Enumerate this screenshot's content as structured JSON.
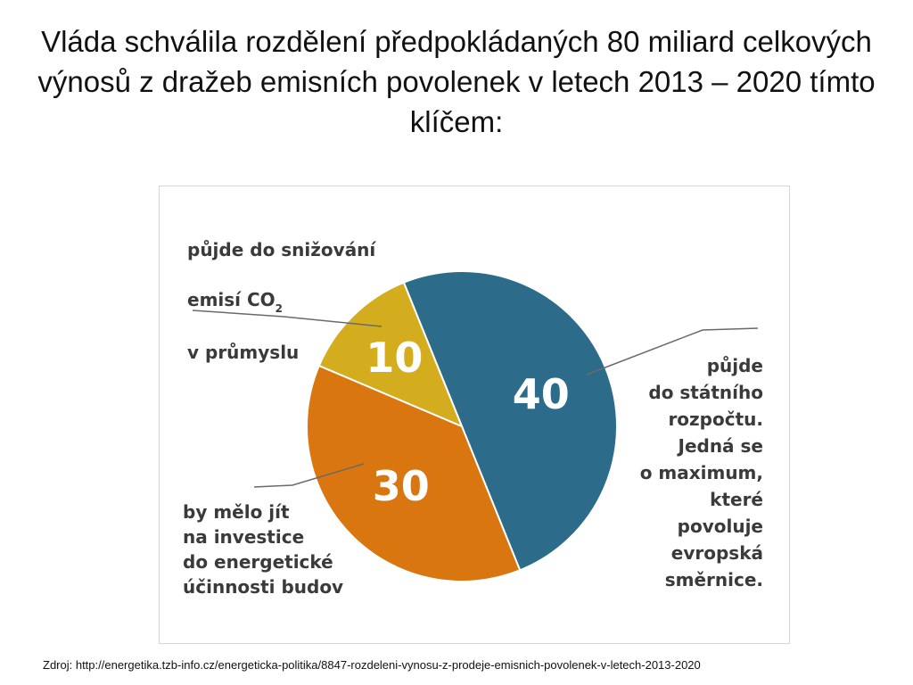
{
  "title": "Vláda schválila rozdělení předpokládaných 80 miliard celkových výnosů z dražeb emisních povolenek v letech 2013 – 2020 tímto klíčem:",
  "chart_data": {
    "type": "pie",
    "title": "Vláda schválila rozdělení předpokládaných 80 miliard celkových výnosů z dražeb emisních povolenek v letech 2013 – 2020 tímto klíčem:",
    "total": 80,
    "slices": [
      {
        "label": "půjde do státního rozpočtu. Jedná se o maximum, které povoluje evropská směrnice.",
        "value": 40,
        "value_label": "40",
        "color": "#2d6b8a"
      },
      {
        "label": "by mělo jít na investice do energetické účinnosti budov",
        "value": 30,
        "value_label": "30",
        "color": "#d9760f"
      },
      {
        "label": "půjde do snižování emisí CO2 v průmyslu",
        "value": 10,
        "value_label": "10",
        "color": "#d4ad1f"
      }
    ],
    "legend": "none"
  },
  "callouts": {
    "top_line1": "půjde do snižování",
    "top_line2_prefix": "emisí CO",
    "top_line2_sub": "2",
    "top_line3": "v průmyslu",
    "right": "půjde\ndo státního\nrozpočtu.\nJedná se\no maximum,\nkteré\npovoluje\nevropská\nsměrnice.",
    "bottom": "by mělo jít\nna investice\ndo energetické\núčinnosti budov"
  },
  "source": "Zdroj: http://energetika.tzb-info.cz/energeticka-politika/8847-rozdeleni-vynosu-z-prodeje-emisnich-povolenek-v-letech-2013-2020"
}
